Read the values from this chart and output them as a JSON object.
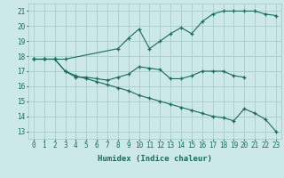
{
  "title": "",
  "xlabel": "Humidex (Indice chaleur)",
  "bg_color": "#cce8e8",
  "grid_color": "#aacccc",
  "line_color": "#1a6b5a",
  "xlim": [
    -0.5,
    23.5
  ],
  "ylim": [
    12.5,
    21.5
  ],
  "yticks": [
    13,
    14,
    15,
    16,
    17,
    18,
    19,
    20,
    21
  ],
  "xticks": [
    0,
    1,
    2,
    3,
    4,
    5,
    6,
    7,
    8,
    9,
    10,
    11,
    12,
    13,
    14,
    15,
    16,
    17,
    18,
    19,
    20,
    21,
    22,
    23
  ],
  "lines": [
    {
      "x": [
        0,
        1,
        2,
        3,
        8,
        9,
        10,
        11,
        12,
        13,
        14,
        15,
        16,
        17,
        18,
        19,
        20,
        21,
        22,
        23
      ],
      "y": [
        17.8,
        17.8,
        17.8,
        17.8,
        18.5,
        19.2,
        19.8,
        18.5,
        19.0,
        19.5,
        19.9,
        19.5,
        20.3,
        20.8,
        21.0,
        21.0,
        21.0,
        21.0,
        20.8,
        20.7
      ]
    },
    {
      "x": [
        0,
        1,
        2,
        3,
        4,
        5,
        6,
        7,
        8,
        9,
        10,
        11,
        12,
        13,
        14,
        15,
        16,
        17,
        18,
        19,
        20
      ],
      "y": [
        17.8,
        17.8,
        17.8,
        17.0,
        16.6,
        16.6,
        16.5,
        16.4,
        16.6,
        16.8,
        17.3,
        17.2,
        17.1,
        16.5,
        16.5,
        16.7,
        17.0,
        17.0,
        17.0,
        16.7,
        16.6
      ]
    },
    {
      "x": [
        0,
        1,
        2,
        3,
        4,
        5,
        6,
        7,
        8,
        9,
        10,
        11,
        12,
        13,
        14,
        15,
        16,
        17,
        18,
        19,
        20,
        21,
        22,
        23
      ],
      "y": [
        17.8,
        17.8,
        17.8,
        17.0,
        16.7,
        16.5,
        16.3,
        16.1,
        15.9,
        15.7,
        15.4,
        15.2,
        15.0,
        14.8,
        14.6,
        14.4,
        14.2,
        14.0,
        13.9,
        13.7,
        14.5,
        14.2,
        13.8,
        13.0
      ]
    }
  ]
}
